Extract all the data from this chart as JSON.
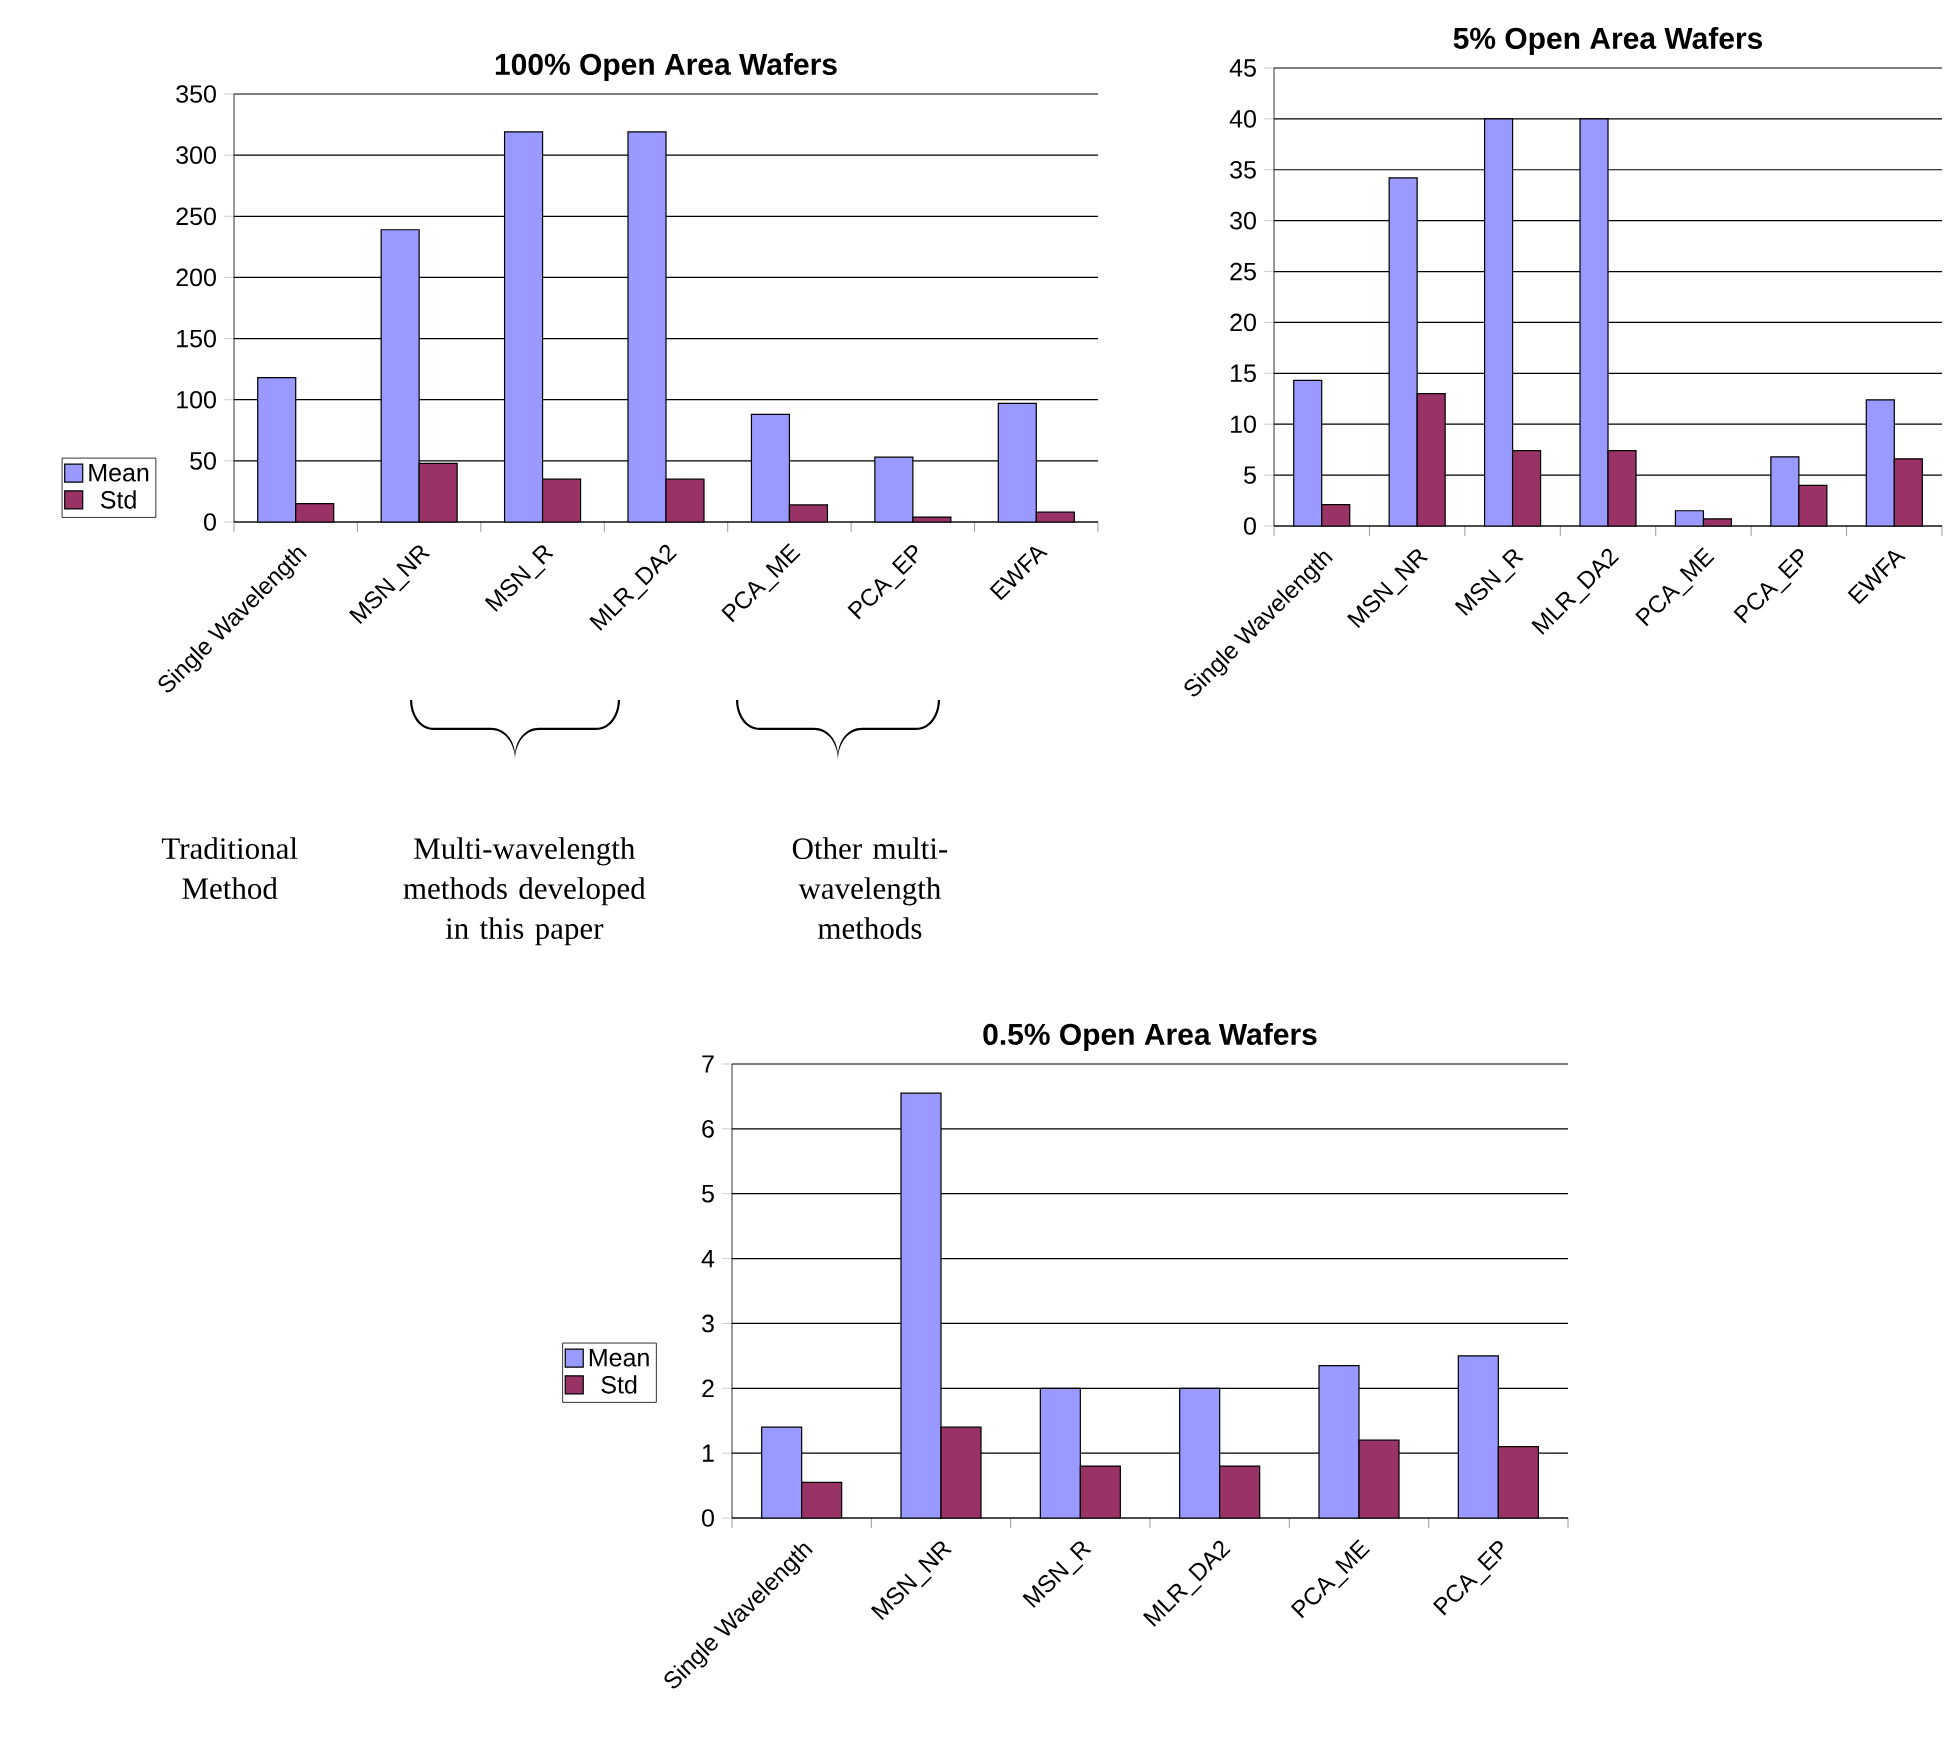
{
  "chart_data": [
    {
      "type": "bar",
      "title": "100% Open Area Wafers",
      "categories": [
        "Single Wavelength",
        "MSN_NR",
        "MSN_R",
        "MLR_DA2",
        "PCA_ME",
        "PCA_EP",
        "EWFA"
      ],
      "series": [
        {
          "name": "Mean",
          "color": "#9999ff",
          "values": [
            118,
            239,
            319,
            319,
            88,
            53,
            97
          ]
        },
        {
          "name": "Std",
          "color": "#993366",
          "values": [
            15,
            48,
            35,
            35,
            14,
            4,
            8
          ]
        }
      ],
      "ylim": [
        0,
        350
      ],
      "yticks": [
        0,
        50,
        100,
        150,
        200,
        250,
        300,
        350
      ],
      "grid": "y",
      "legend": "left",
      "annotations": [
        "Traditional Method",
        "Multi-wavelength methods developed in this paper",
        "Other multi-wavelength methods"
      ]
    },
    {
      "type": "bar",
      "title": "5% Open Area Wafers",
      "categories": [
        "Single Wavelength",
        "MSN_NR",
        "MSN_R",
        "MLR_DA2",
        "PCA_ME",
        "PCA_EP",
        "EWFA"
      ],
      "series": [
        {
          "color": "#9999ff",
          "values": [
            14.3,
            34.2,
            40,
            40,
            1.5,
            6.8,
            12.4
          ]
        },
        {
          "color": "#993366",
          "values": [
            2.1,
            13,
            7.4,
            7.4,
            0.7,
            4,
            6.6
          ]
        }
      ],
      "ylim": [
        0,
        45
      ],
      "yticks": [
        0,
        5,
        10,
        15,
        20,
        25,
        30,
        35,
        40,
        45
      ],
      "grid": "y"
    },
    {
      "type": "bar",
      "title": "0.5% Open Area Wafers",
      "categories": [
        "Single Wavelength",
        "MSN_NR",
        "MSN_R",
        "MLR_DA2",
        "PCA_ME",
        "PCA_EP"
      ],
      "series": [
        {
          "name": "Mean",
          "color": "#9999ff",
          "values": [
            1.4,
            6.55,
            2.0,
            2.0,
            2.35,
            2.5
          ]
        },
        {
          "name": "Std",
          "color": "#993366",
          "values": [
            0.55,
            1.4,
            0.8,
            0.8,
            1.2,
            1.1
          ]
        }
      ],
      "ylim": [
        0,
        7
      ],
      "yticks": [
        0,
        1,
        2,
        3,
        4,
        5,
        6,
        7
      ],
      "grid": "y",
      "legend": "left"
    }
  ]
}
